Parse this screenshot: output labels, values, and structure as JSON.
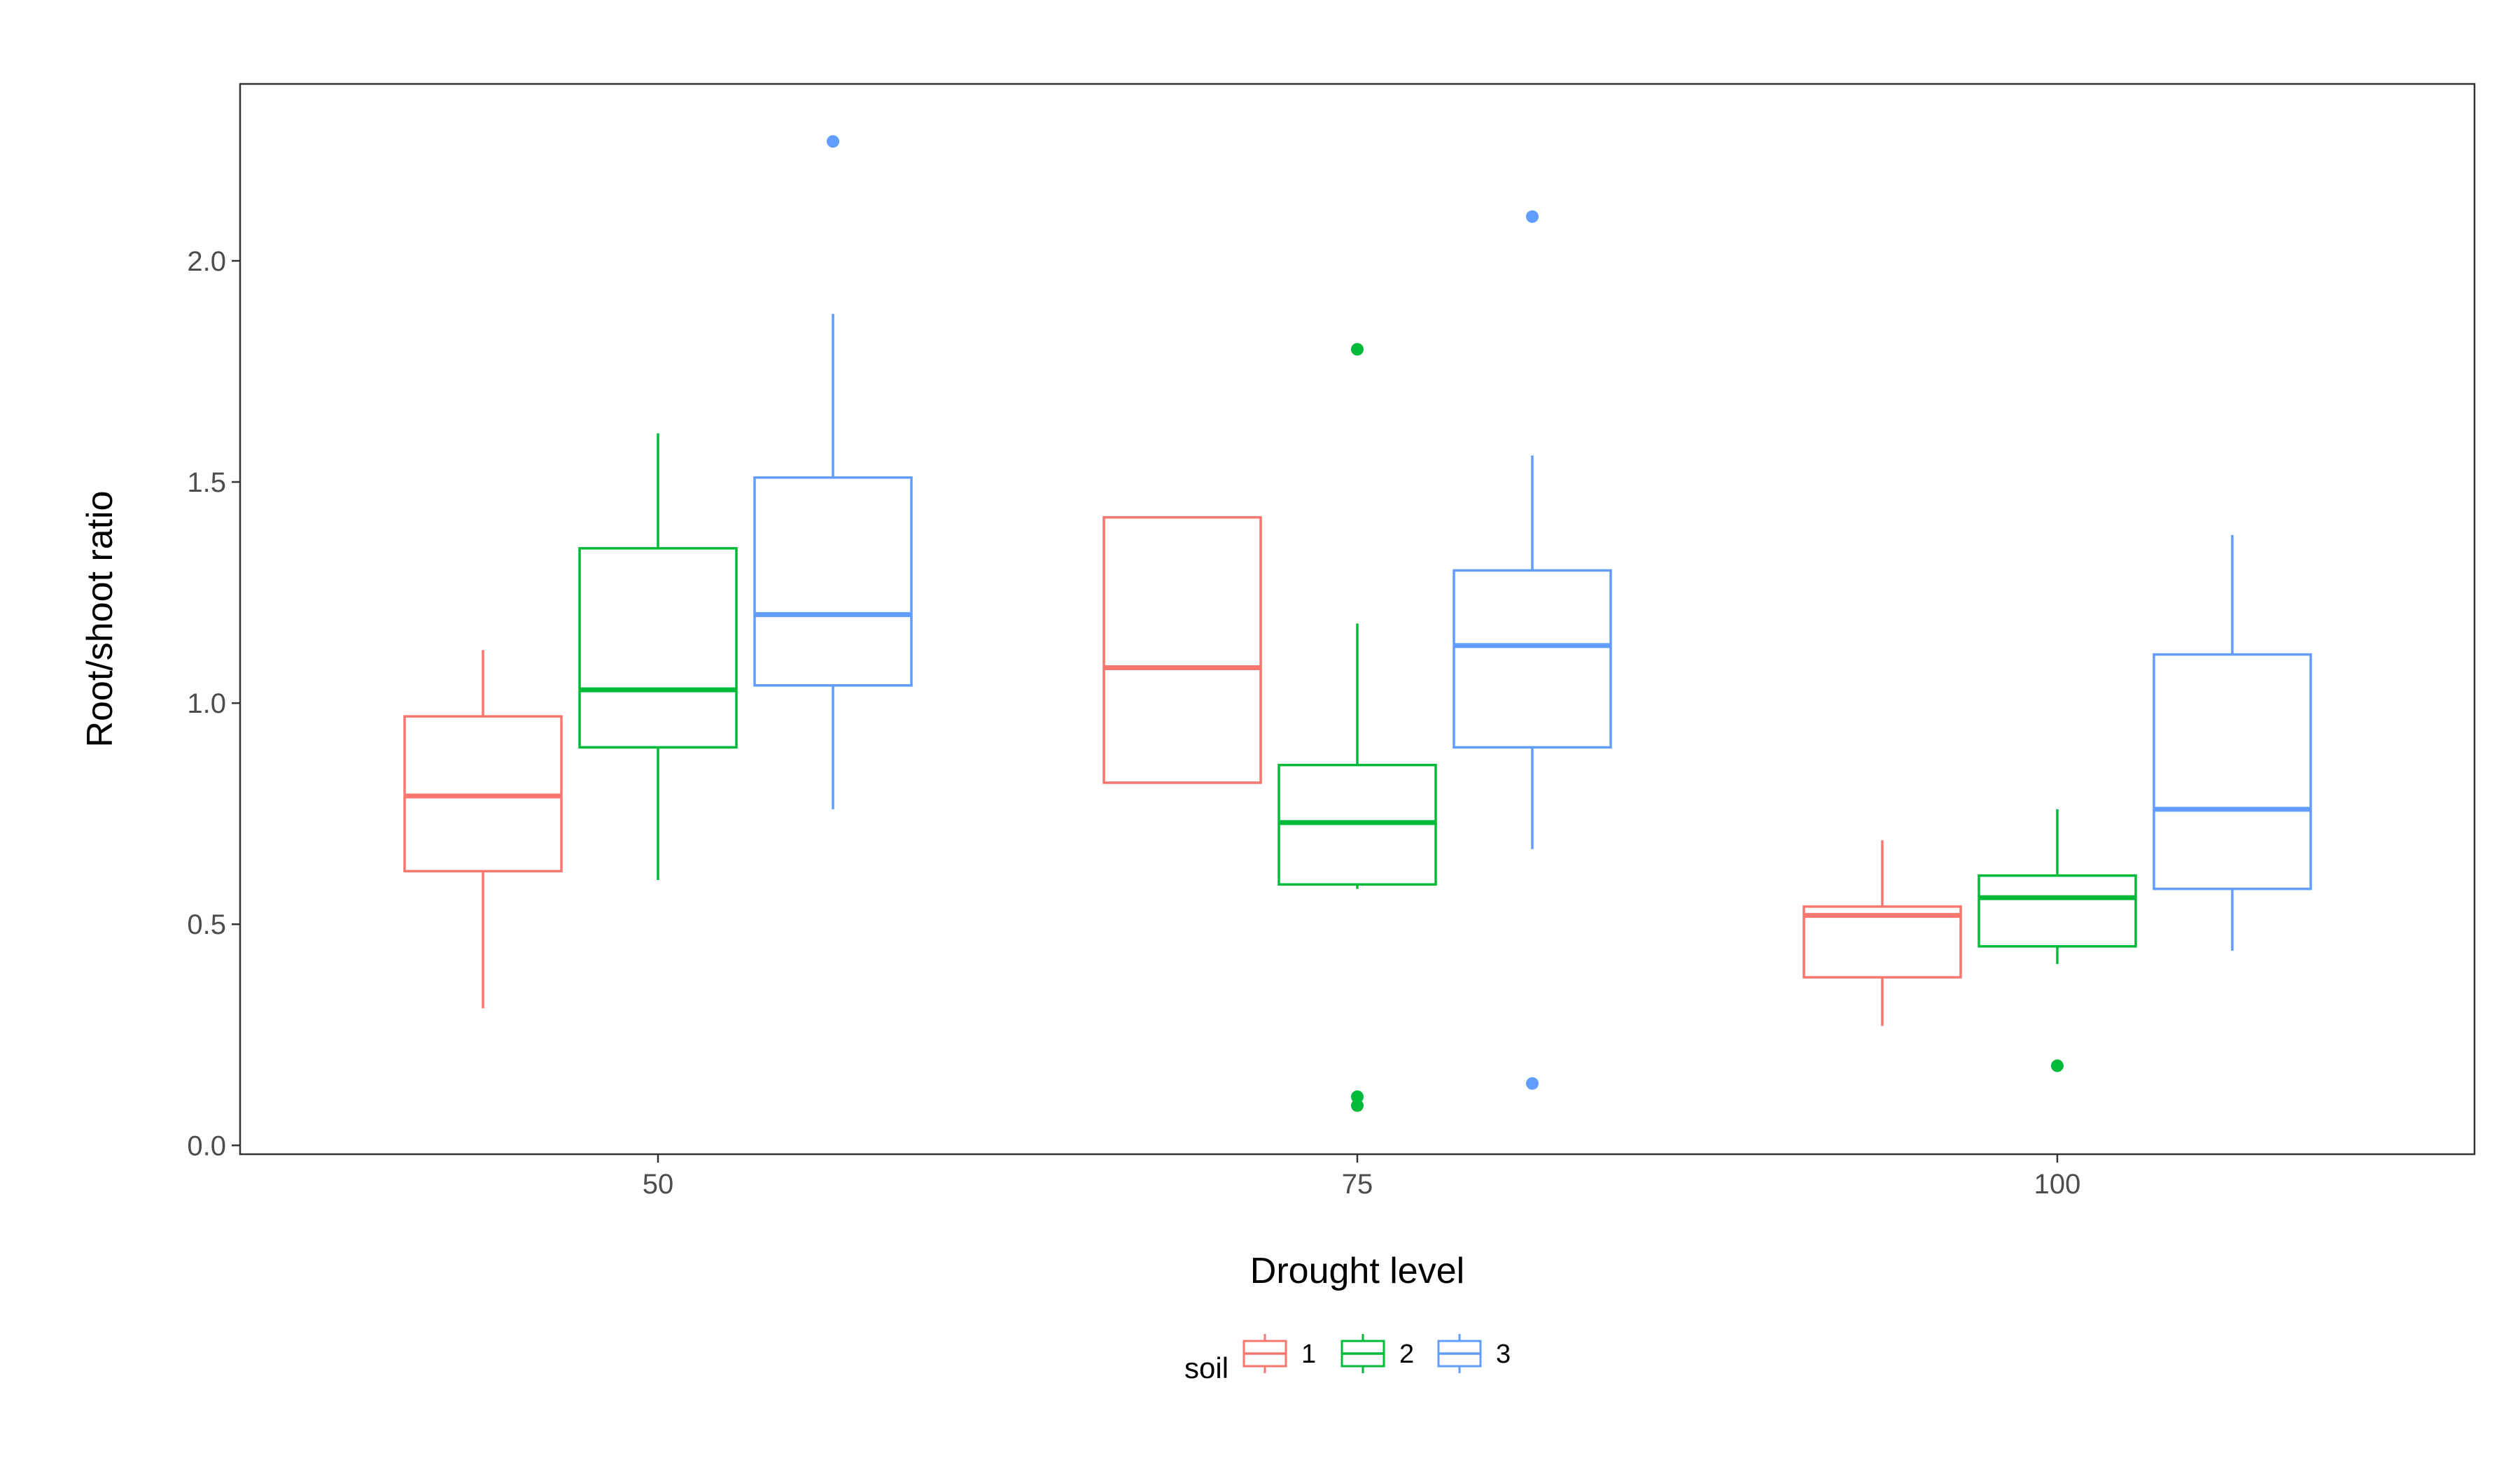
{
  "chart_data": {
    "type": "boxplot",
    "xlabel": "Drought level",
    "ylabel": "Root/shoot ratio",
    "categories": [
      "50",
      "75",
      "100"
    ],
    "ylim": [
      -0.02,
      2.4
    ],
    "yticks": [
      0.0,
      0.5,
      1.0,
      1.5,
      2.0
    ],
    "ytick_labels": [
      "0.0",
      "0.5",
      "1.0",
      "1.5",
      "2.0"
    ],
    "grid": false,
    "legend": {
      "title": "soil",
      "position": "bottom"
    },
    "series": [
      {
        "name": "1",
        "color": "#F8766D",
        "boxes": [
          {
            "category": "50",
            "lower_whisker": 0.31,
            "q1": 0.62,
            "median": 0.79,
            "q3": 0.97,
            "upper_whisker": 1.12,
            "outliers": []
          },
          {
            "category": "75",
            "lower_whisker": 0.82,
            "q1": 0.82,
            "median": 1.08,
            "q3": 1.42,
            "upper_whisker": 1.42,
            "outliers": []
          },
          {
            "category": "100",
            "lower_whisker": 0.27,
            "q1": 0.38,
            "median": 0.52,
            "q3": 0.54,
            "upper_whisker": 0.69,
            "outliers": []
          }
        ]
      },
      {
        "name": "2",
        "color": "#00BA38",
        "boxes": [
          {
            "category": "50",
            "lower_whisker": 0.6,
            "q1": 0.9,
            "median": 1.03,
            "q3": 1.35,
            "upper_whisker": 1.61,
            "outliers": []
          },
          {
            "category": "75",
            "lower_whisker": 0.58,
            "q1": 0.59,
            "median": 0.73,
            "q3": 0.86,
            "upper_whisker": 1.18,
            "outliers": [
              1.8,
              0.11,
              0.09
            ]
          },
          {
            "category": "100",
            "lower_whisker": 0.41,
            "q1": 0.45,
            "median": 0.56,
            "q3": 0.61,
            "upper_whisker": 0.76,
            "outliers": [
              0.18
            ]
          }
        ]
      },
      {
        "name": "3",
        "color": "#619CFF",
        "boxes": [
          {
            "category": "50",
            "lower_whisker": 0.76,
            "q1": 1.04,
            "median": 1.2,
            "q3": 1.51,
            "upper_whisker": 1.88,
            "outliers": [
              2.27
            ]
          },
          {
            "category": "75",
            "lower_whisker": 0.67,
            "q1": 0.9,
            "median": 1.13,
            "q3": 1.3,
            "upper_whisker": 1.56,
            "outliers": [
              2.1,
              0.14
            ]
          },
          {
            "category": "100",
            "lower_whisker": 0.44,
            "q1": 0.58,
            "median": 0.76,
            "q3": 1.11,
            "upper_whisker": 1.38,
            "outliers": []
          }
        ]
      }
    ]
  }
}
